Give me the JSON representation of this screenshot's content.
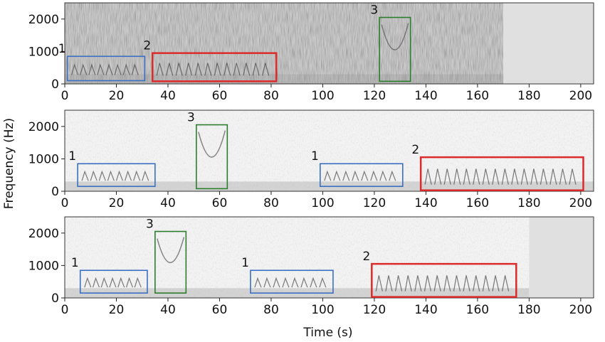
{
  "figure": {
    "xlabel": "Time (s)",
    "ylabel": "Frequency (Hz)",
    "x_ticks": [
      0,
      20,
      40,
      60,
      80,
      100,
      120,
      140,
      160,
      180,
      200
    ],
    "y_ticks": [
      0,
      1000,
      2000
    ],
    "xlim": [
      0,
      205
    ],
    "ylim": [
      0,
      2500
    ],
    "colors": {
      "type_1": "#3a6fc4",
      "type_2": "#dd2a2a",
      "type_3": "#2e7d2e",
      "no_data": "#e0e0e0"
    }
  },
  "panels": [
    {
      "recording_end_s": 170,
      "boxes": [
        {
          "label": "1",
          "type": "type_1",
          "t0": 1,
          "t1": 31,
          "f0": 100,
          "f1": 850
        },
        {
          "label": "2",
          "type": "type_2",
          "t0": 34,
          "t1": 82,
          "f0": 80,
          "f1": 950
        },
        {
          "label": "3",
          "type": "type_3",
          "t0": 122,
          "t1": 134,
          "f0": 80,
          "f1": 2050
        }
      ]
    },
    {
      "recording_end_s": 205,
      "boxes": [
        {
          "label": "1",
          "type": "type_1",
          "t0": 5,
          "t1": 35,
          "f0": 150,
          "f1": 850
        },
        {
          "label": "3",
          "type": "type_3",
          "t0": 51,
          "t1": 63,
          "f0": 80,
          "f1": 2050
        },
        {
          "label": "1",
          "type": "type_1",
          "t0": 99,
          "t1": 131,
          "f0": 150,
          "f1": 850
        },
        {
          "label": "2",
          "type": "type_2",
          "t0": 138,
          "t1": 201,
          "f0": 30,
          "f1": 1050
        }
      ]
    },
    {
      "recording_end_s": 180,
      "boxes": [
        {
          "label": "1",
          "type": "type_1",
          "t0": 6,
          "t1": 32,
          "f0": 150,
          "f1": 850
        },
        {
          "label": "3",
          "type": "type_3",
          "t0": 35,
          "t1": 47,
          "f0": 150,
          "f1": 2050
        },
        {
          "label": "1",
          "type": "type_1",
          "t0": 72,
          "t1": 104,
          "f0": 150,
          "f1": 850
        },
        {
          "label": "2",
          "type": "type_2",
          "t0": 119,
          "t1": 175,
          "f0": 30,
          "f1": 1050
        }
      ]
    }
  ]
}
